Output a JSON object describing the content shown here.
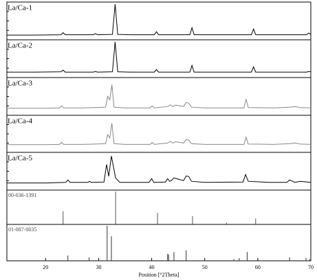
{
  "chart_data": [
    {
      "type": "line",
      "title": "La/Ca-1",
      "color": "#000000",
      "xlim": [
        12.7,
        70
      ],
      "ylim": [
        0,
        100
      ],
      "x": [
        12.7,
        18,
        22.9,
        23.3,
        23.7,
        29,
        29.4,
        29.8,
        32.6,
        33.1,
        33.6,
        36,
        40.5,
        40.9,
        41.3,
        47.2,
        47.6,
        48,
        52,
        58.8,
        59.2,
        59.6,
        65,
        69.2,
        69.6,
        70
      ],
      "values": [
        8,
        8,
        9,
        15,
        9,
        9,
        12,
        9,
        10,
        100,
        10,
        9,
        9,
        18,
        9,
        9,
        30,
        9,
        9,
        9,
        26,
        9,
        9,
        9,
        14,
        10
      ]
    },
    {
      "type": "line",
      "title": "La/Ca-2",
      "color": "#000000",
      "xlim": [
        12.7,
        70
      ],
      "ylim": [
        0,
        100
      ],
      "x": [
        12.7,
        18,
        22.9,
        23.3,
        23.7,
        29,
        29.4,
        29.8,
        32.6,
        33.1,
        33.6,
        36,
        40.5,
        40.9,
        41.3,
        47.2,
        47.6,
        48,
        52,
        58.8,
        59.2,
        59.6,
        65,
        69.2,
        69.6,
        70
      ],
      "values": [
        10,
        10,
        11,
        16,
        10,
        10,
        12,
        10,
        11,
        100,
        11,
        10,
        10,
        18,
        10,
        10,
        30,
        10,
        10,
        10,
        26,
        10,
        10,
        10,
        12,
        11
      ]
    },
    {
      "type": "line",
      "title": "La/Ca-3",
      "color": "#888888",
      "xlim": [
        12.7,
        70
      ],
      "ylim": [
        0,
        100
      ],
      "x": [
        12.7,
        20,
        22.6,
        23,
        23.4,
        27,
        31.3,
        31.7,
        32.1,
        32.5,
        32.9,
        35,
        39.7,
        40.1,
        40.5,
        43,
        43.5,
        44,
        44.5,
        46,
        46.5,
        47,
        47.5,
        50,
        57.4,
        57.8,
        58.2,
        63,
        66,
        67,
        68,
        70
      ],
      "values": [
        15,
        15,
        16,
        22,
        16,
        16,
        18,
        50,
        40,
        85,
        18,
        16,
        16,
        22,
        16,
        20,
        25,
        20,
        24,
        20,
        32,
        30,
        18,
        16,
        16,
        42,
        17,
        16,
        18,
        20,
        17,
        16
      ]
    },
    {
      "type": "line",
      "title": "La/Ca-4",
      "color": "#888888",
      "xlim": [
        12.7,
        70
      ],
      "ylim": [
        0,
        100
      ],
      "x": [
        12.7,
        20,
        22.6,
        23,
        23.4,
        27,
        31.3,
        31.7,
        32.1,
        32.5,
        32.9,
        35,
        39.7,
        40.1,
        40.5,
        43,
        43.5,
        44,
        44.5,
        46,
        46.5,
        47,
        47.5,
        50,
        57.4,
        57.8,
        58.2,
        63,
        66,
        67,
        68,
        70
      ],
      "values": [
        17,
        17,
        18,
        24,
        18,
        18,
        20,
        48,
        38,
        82,
        20,
        18,
        18,
        24,
        18,
        22,
        27,
        22,
        26,
        22,
        33,
        31,
        20,
        18,
        18,
        40,
        19,
        18,
        20,
        22,
        19,
        18
      ]
    },
    {
      "type": "line",
      "title": "La/Ca-5",
      "color": "#000000",
      "xlim": [
        12.7,
        70
      ],
      "ylim": [
        0,
        100
      ],
      "x": [
        12.7,
        20,
        23.8,
        24.2,
        24.6,
        28,
        28.3,
        28.6,
        31,
        31.5,
        31.9,
        32.4,
        33.2,
        34,
        39.5,
        40,
        40.4,
        42.6,
        43,
        43.4,
        43.7,
        44.2,
        46,
        46.5,
        47,
        47.5,
        50,
        57.2,
        57.7,
        58.2,
        62,
        65.5,
        66,
        67,
        68,
        70
      ],
      "values": [
        15,
        15,
        17,
        24,
        17,
        17,
        20,
        17,
        18,
        70,
        35,
        95,
        30,
        17,
        17,
        28,
        17,
        18,
        28,
        20,
        22,
        30,
        22,
        36,
        34,
        20,
        17,
        18,
        40,
        20,
        17,
        17,
        24,
        17,
        20,
        17
      ]
    },
    {
      "type": "stick",
      "title": "00-036-1391",
      "color": "#555555",
      "xlim": [
        12.7,
        70
      ],
      "ylim": [
        0,
        100
      ],
      "x": [
        23.3,
        33.2,
        41.1,
        47.7,
        54.1,
        59.6
      ],
      "values": [
        40,
        100,
        35,
        25,
        5,
        18
      ]
    },
    {
      "type": "stick",
      "title": "01-087-0035",
      "color": "#333333",
      "xlim": [
        12.7,
        70
      ],
      "ylim": [
        0,
        100
      ],
      "x": [
        24.2,
        28.2,
        31.6,
        32.4,
        43.0,
        43.2,
        44.2,
        46.5,
        55.5,
        56.5,
        58.0,
        66.0,
        69.1,
        69.8
      ],
      "values": [
        15,
        10,
        100,
        70,
        20,
        18,
        25,
        30,
        5,
        8,
        25,
        10,
        8,
        5
      ],
      "xticks": [
        20,
        30,
        40,
        50,
        60,
        70
      ],
      "xlabel": "Position [°2Theta]"
    }
  ]
}
